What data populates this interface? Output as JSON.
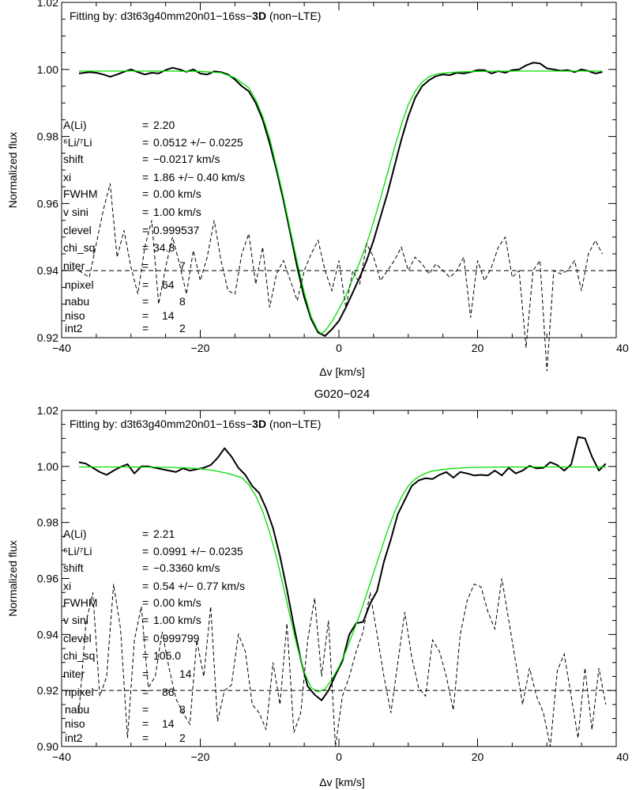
{
  "chart_data": [
    {
      "type": "line",
      "title": "",
      "header": {
        "prefix": "Fitting by: d3t63g40mm20n01−16ss−",
        "bold": "3D",
        "suffix": " (non−LTE)"
      },
      "xlabel": "Δv [km/s]",
      "ylabel": "Normalized flux",
      "xlim": [
        -40,
        40
      ],
      "ylim": [
        0.92,
        1.02
      ],
      "xticks": [
        -40,
        -20,
        0,
        20,
        40
      ],
      "xtick_labels": [
        "−40",
        "−20",
        "0",
        "20",
        "40"
      ],
      "yticks": [
        0.92,
        0.94,
        0.96,
        0.98,
        1.0,
        1.02
      ],
      "ytick_labels": [
        "0.92",
        "0.94",
        "0.96",
        "0.98",
        "1.00",
        "1.02"
      ],
      "grid": false,
      "hline": 0.94,
      "params": [
        {
          "name": "A(Li)",
          "eq": "=",
          "value": "2.20"
        },
        {
          "name": "⁶Li/⁷Li",
          "eq": "=",
          "value": "0.0512 +/− 0.0225"
        },
        {
          "name": "shift",
          "eq": "=",
          "value": "−0.0217 km/s"
        },
        {
          "name": "xi",
          "eq": "=",
          "value": "1.86 +/− 0.40 km/s"
        },
        {
          "name": "FWHM",
          "eq": "=",
          "value": "0.00 km/s"
        },
        {
          "name": "v sini",
          "eq": "=",
          "value": "1.00 km/s"
        },
        {
          "name": "clevel",
          "eq": "=",
          "value": "0.999537"
        },
        {
          "name": "chi_sq",
          "eq": "=",
          "value": "34.8"
        },
        {
          "name": "niter",
          "eq": "=",
          "value": "7"
        },
        {
          "name": "npixel",
          "eq": "=",
          "value": "64"
        },
        {
          "name": "nabu",
          "eq": "=",
          "value": "8"
        },
        {
          "name": "niso",
          "eq": "=",
          "value": "14"
        },
        {
          "name": "int2",
          "eq": "=",
          "value": "2"
        }
      ],
      "series": [
        {
          "style": "observed",
          "color": "#000000",
          "x": [
            -37.5,
            -36,
            -35,
            -34,
            -33,
            -32,
            -31,
            -30,
            -29,
            -28,
            -27,
            -26,
            -25,
            -24,
            -23,
            -22,
            -21,
            -20,
            -19,
            -18,
            -17,
            -16,
            -15,
            -14,
            -13,
            -12,
            -11,
            -10,
            -9,
            -8,
            -7,
            -6,
            -5,
            -4,
            -3,
            -2,
            -1,
            0,
            1,
            2,
            3,
            4,
            5,
            6,
            7,
            8,
            9,
            10,
            11,
            12,
            13,
            14,
            15,
            16,
            17,
            18,
            19,
            20,
            21,
            22,
            23,
            24,
            25,
            26,
            27,
            28,
            29,
            30,
            31,
            32,
            33,
            34,
            35,
            36,
            37,
            38
          ],
          "y": [
            0.9988,
            0.9992,
            0.999,
            0.9985,
            0.9978,
            0.9985,
            0.9993,
            1.0,
            0.9992,
            0.9985,
            0.999,
            0.9988,
            0.9998,
            1.0005,
            1.0,
            0.9993,
            1.0,
            0.9988,
            0.9985,
            0.9994,
            0.9992,
            0.9985,
            0.997,
            0.995,
            0.9935,
            0.99,
            0.985,
            0.978,
            0.97,
            0.961,
            0.951,
            0.941,
            0.932,
            0.9255,
            0.9215,
            0.9205,
            0.9225,
            0.925,
            0.929,
            0.9335,
            0.938,
            0.943,
            0.949,
            0.956,
            0.963,
            0.971,
            0.979,
            0.986,
            0.9915,
            0.995,
            0.9968,
            0.998,
            0.9985,
            0.9983,
            0.999,
            0.9988,
            0.9992,
            0.9998,
            0.9998,
            0.9988,
            0.9995,
            0.999,
            0.9998,
            1.0,
            1.0012,
            1.002,
            1.0018,
            1.0003,
            1.0,
            0.9996,
            0.9998,
            0.9992,
            1.0,
            0.9995,
            0.9988,
            0.9992
          ]
        },
        {
          "style": "model",
          "color": "#00e000",
          "x": [
            -37.5,
            -30,
            -25,
            -20,
            -17,
            -15,
            -13,
            -12,
            -11,
            -10,
            -9,
            -8,
            -7,
            -6,
            -5,
            -4,
            -3,
            -2.5,
            -2,
            -1,
            0,
            1,
            2,
            3,
            4,
            5,
            6,
            7,
            8,
            9,
            10,
            11,
            12,
            13,
            14,
            16,
            18,
            20,
            25,
            30,
            38
          ],
          "y": [
            0.9995,
            0.9995,
            0.9995,
            0.9994,
            0.999,
            0.9975,
            0.9945,
            0.991,
            0.986,
            0.9795,
            0.971,
            0.962,
            0.952,
            0.9425,
            0.9335,
            0.9262,
            0.922,
            0.9212,
            0.922,
            0.9248,
            0.9285,
            0.9325,
            0.9375,
            0.9425,
            0.948,
            0.9545,
            0.9615,
            0.969,
            0.9765,
            0.9835,
            0.9895,
            0.9935,
            0.9962,
            0.9978,
            0.9986,
            0.9991,
            0.9993,
            0.9994,
            0.9995,
            0.9995,
            0.9995
          ]
        },
        {
          "style": "residual",
          "color": "#000000",
          "x": [
            -37.5,
            -36,
            -35,
            -34,
            -33,
            -32,
            -31,
            -30,
            -29,
            -28,
            -27,
            -26,
            -25,
            -24,
            -23,
            -22,
            -21,
            -20,
            -19,
            -18,
            -17,
            -16,
            -15,
            -14,
            -13,
            -12,
            -11,
            -10,
            -9,
            -8,
            -7,
            -6,
            -5,
            -4,
            -3,
            -2,
            -1,
            0,
            1,
            2,
            3,
            4,
            5,
            6,
            7,
            8,
            9,
            10,
            11,
            12,
            13,
            14,
            15,
            16,
            17,
            18,
            19,
            20,
            21,
            22,
            23,
            24,
            25,
            26,
            27,
            28,
            29,
            30,
            31,
            32,
            33,
            34,
            35,
            36,
            37,
            38
          ],
          "y": [
            0.94,
            0.938,
            0.948,
            0.958,
            0.966,
            0.944,
            0.952,
            0.941,
            0.933,
            0.947,
            0.955,
            0.93,
            0.941,
            0.95,
            0.942,
            0.933,
            0.946,
            0.937,
            0.944,
            0.955,
            0.943,
            0.934,
            0.933,
            0.945,
            0.951,
            0.936,
            0.947,
            0.929,
            0.939,
            0.943,
            0.937,
            0.931,
            0.94,
            0.945,
            0.949,
            0.94,
            0.934,
            0.943,
            0.929,
            0.94,
            0.936,
            0.948,
            0.944,
            0.937,
            0.94,
            0.943,
            0.947,
            0.94,
            0.944,
            0.942,
            0.939,
            0.942,
            0.94,
            0.938,
            0.94,
            0.944,
            0.926,
            0.943,
            0.937,
            0.941,
            0.947,
            0.95,
            0.938,
            0.94,
            0.917,
            0.94,
            0.943,
            0.91,
            0.94,
            0.939,
            0.94,
            0.943,
            0.934,
            0.945,
            0.949,
            0.945
          ]
        }
      ]
    },
    {
      "type": "line",
      "title": "G020−024",
      "header": {
        "prefix": "Fitting by: d3t63g40mm20n01−16ss−",
        "bold": "3D",
        "suffix": " (non−LTE)"
      },
      "xlabel": "Δv [km/s]",
      "ylabel": "Normalized flux",
      "xlim": [
        -40,
        40
      ],
      "ylim": [
        0.9,
        1.02
      ],
      "xticks": [
        -40,
        -20,
        0,
        20,
        40
      ],
      "xtick_labels": [
        "−40",
        "−20",
        "0",
        "20",
        "40"
      ],
      "yticks": [
        0.9,
        0.92,
        0.94,
        0.96,
        0.98,
        1.0,
        1.02
      ],
      "ytick_labels": [
        "0.90",
        "0.92",
        "0.94",
        "0.96",
        "0.98",
        "1.00",
        "1.02"
      ],
      "grid": false,
      "hline": 0.92,
      "params": [
        {
          "name": "A(Li)",
          "eq": "=",
          "value": "2.21"
        },
        {
          "name": "⁶Li/⁷Li",
          "eq": "=",
          "value": "0.0991 +/− 0.0235"
        },
        {
          "name": "shift",
          "eq": "=",
          "value": "−0.3360 km/s"
        },
        {
          "name": "xi",
          "eq": "=",
          "value": "0.54 +/− 0.77 km/s"
        },
        {
          "name": "FWHM",
          "eq": "=",
          "value": "0.00 km/s"
        },
        {
          "name": "v sini",
          "eq": "=",
          "value": "1.00 km/s"
        },
        {
          "name": "clevel",
          "eq": "=",
          "value": "0.999799"
        },
        {
          "name": "chi_sq",
          "eq": "=",
          "value": "105.0"
        },
        {
          "name": "niter",
          "eq": "=",
          "value": "14"
        },
        {
          "name": "npixel",
          "eq": "=",
          "value": "86"
        },
        {
          "name": "nabu",
          "eq": "=",
          "value": "8"
        },
        {
          "name": "niso",
          "eq": "=",
          "value": "14"
        },
        {
          "name": "int2",
          "eq": "=",
          "value": "2"
        }
      ],
      "series": [
        {
          "style": "observed",
          "color": "#000000",
          "x": [
            -37.5,
            -36.5,
            -35.5,
            -34.5,
            -33.5,
            -32.5,
            -31.5,
            -30.5,
            -29.5,
            -28.5,
            -27.5,
            -26.5,
            -25.5,
            -24.5,
            -23.5,
            -22.5,
            -21.5,
            -20.5,
            -19.5,
            -18.5,
            -17.5,
            -16.5,
            -15.5,
            -14.5,
            -13.5,
            -12.5,
            -11.5,
            -10.5,
            -9.5,
            -8.5,
            -7.5,
            -6.5,
            -5.5,
            -4.5,
            -3.5,
            -2.5,
            -1.5,
            -0.5,
            0.5,
            1.5,
            2.5,
            3.5,
            4.5,
            5.5,
            6.5,
            7.5,
            8.5,
            9.5,
            10.5,
            11.5,
            12.5,
            13.5,
            14.5,
            15.5,
            16.5,
            17.5,
            18.5,
            19.5,
            20.5,
            21.5,
            22.5,
            23.5,
            24.5,
            25.5,
            26.5,
            27.5,
            28.5,
            29.5,
            30.5,
            31.5,
            32.5,
            33.5,
            34.5,
            35.5,
            36.5,
            37.5,
            38.5
          ],
          "y": [
            1.0015,
            1.001,
            0.9995,
            0.998,
            0.997,
            0.9985,
            0.9998,
            1.0008,
            0.9975,
            1.0,
            1.0,
            0.9995,
            0.999,
            0.9985,
            0.998,
            0.9993,
            0.9985,
            0.999,
            0.9995,
            1.0005,
            1.003,
            1.0065,
            1.0035,
            0.9995,
            0.997,
            0.993,
            0.9905,
            0.985,
            0.978,
            0.968,
            0.956,
            0.943,
            0.931,
            0.9215,
            0.9185,
            0.9165,
            0.92,
            0.9255,
            0.9305,
            0.94,
            0.944,
            0.9445,
            0.951,
            0.9555,
            0.966,
            0.974,
            0.983,
            0.988,
            0.993,
            0.995,
            0.9958,
            0.9955,
            0.997,
            0.998,
            0.996,
            0.998,
            0.9975,
            0.9968,
            0.997,
            0.9968,
            0.9985,
            0.9968,
            0.9995,
            0.9975,
            0.9985,
            1.0002,
            0.9993,
            0.9995,
            1.0015,
            1.0005,
            0.9985,
            1.0007,
            1.0105,
            1.01,
            1.0035,
            0.9985,
            1.001
          ]
        },
        {
          "style": "model",
          "color": "#00e000",
          "x": [
            -37.5,
            -30,
            -25,
            -22,
            -20,
            -18,
            -16,
            -14,
            -13,
            -12,
            -11,
            -10,
            -9,
            -8,
            -7,
            -6,
            -5,
            -4,
            -3,
            -2,
            -1,
            0,
            1,
            2,
            3,
            4,
            5,
            6,
            7,
            8,
            9,
            10,
            11,
            12,
            13,
            14,
            16,
            18,
            20,
            25,
            30,
            38.5
          ],
          "y": [
            0.9998,
            0.9998,
            0.9997,
            0.9995,
            0.9992,
            0.9985,
            0.9975,
            0.996,
            0.9935,
            0.9895,
            0.984,
            0.9765,
            0.9675,
            0.957,
            0.946,
            0.9355,
            0.9265,
            0.921,
            0.9195,
            0.9205,
            0.924,
            0.9285,
            0.934,
            0.9405,
            0.947,
            0.9545,
            0.962,
            0.9695,
            0.977,
            0.9835,
            0.989,
            0.993,
            0.9955,
            0.997,
            0.998,
            0.9986,
            0.9992,
            0.9995,
            0.9997,
            0.9998,
            0.9998,
            0.9998
          ]
        },
        {
          "style": "residual",
          "color": "#000000",
          "x": [
            -37.5,
            -36.5,
            -35.5,
            -34.5,
            -33.5,
            -32.5,
            -31.5,
            -30.5,
            -29.5,
            -28.5,
            -27.5,
            -26.5,
            -25.5,
            -24.5,
            -23.5,
            -22.5,
            -21.5,
            -20.5,
            -19.5,
            -18.5,
            -17.5,
            -16.5,
            -15.5,
            -14.5,
            -13.5,
            -12.5,
            -11.5,
            -10.5,
            -9.5,
            -8.5,
            -7.5,
            -6.5,
            -5.5,
            -4.5,
            -3.5,
            -2.5,
            -1.5,
            -0.5,
            0.5,
            1.5,
            2.5,
            3.5,
            4.5,
            5.5,
            6.5,
            7.5,
            8.5,
            9.5,
            10.5,
            11.5,
            12.5,
            13.5,
            14.5,
            15.5,
            16.5,
            17.5,
            18.5,
            19.5,
            20.5,
            21.5,
            22.5,
            23.5,
            24.5,
            25.5,
            26.5,
            27.5,
            28.5,
            29.5,
            30.5,
            31.5,
            32.5,
            33.5,
            34.5,
            35.5,
            36.5,
            37.5,
            38.5
          ],
          "y": [
            0.912,
            0.944,
            0.955,
            0.918,
            0.925,
            0.958,
            0.942,
            0.903,
            0.938,
            0.95,
            0.921,
            0.925,
            0.941,
            0.928,
            0.917,
            0.912,
            0.908,
            0.938,
            0.925,
            0.95,
            0.909,
            0.92,
            0.922,
            0.94,
            0.934,
            0.915,
            0.912,
            0.906,
            0.93,
            0.915,
            0.944,
            0.905,
            0.912,
            0.938,
            0.953,
            0.925,
            0.945,
            0.9,
            0.918,
            0.925,
            0.934,
            0.941,
            0.955,
            0.94,
            0.925,
            0.912,
            0.93,
            0.948,
            0.932,
            0.921,
            0.918,
            0.938,
            0.934,
            0.925,
            0.913,
            0.94,
            0.952,
            0.958,
            0.957,
            0.948,
            0.942,
            0.96,
            0.945,
            0.93,
            0.915,
            0.928,
            0.918,
            0.912,
            0.9,
            0.927,
            0.933,
            0.918,
            0.903,
            0.928,
            0.906,
            0.928,
            0.915
          ]
        }
      ]
    }
  ]
}
